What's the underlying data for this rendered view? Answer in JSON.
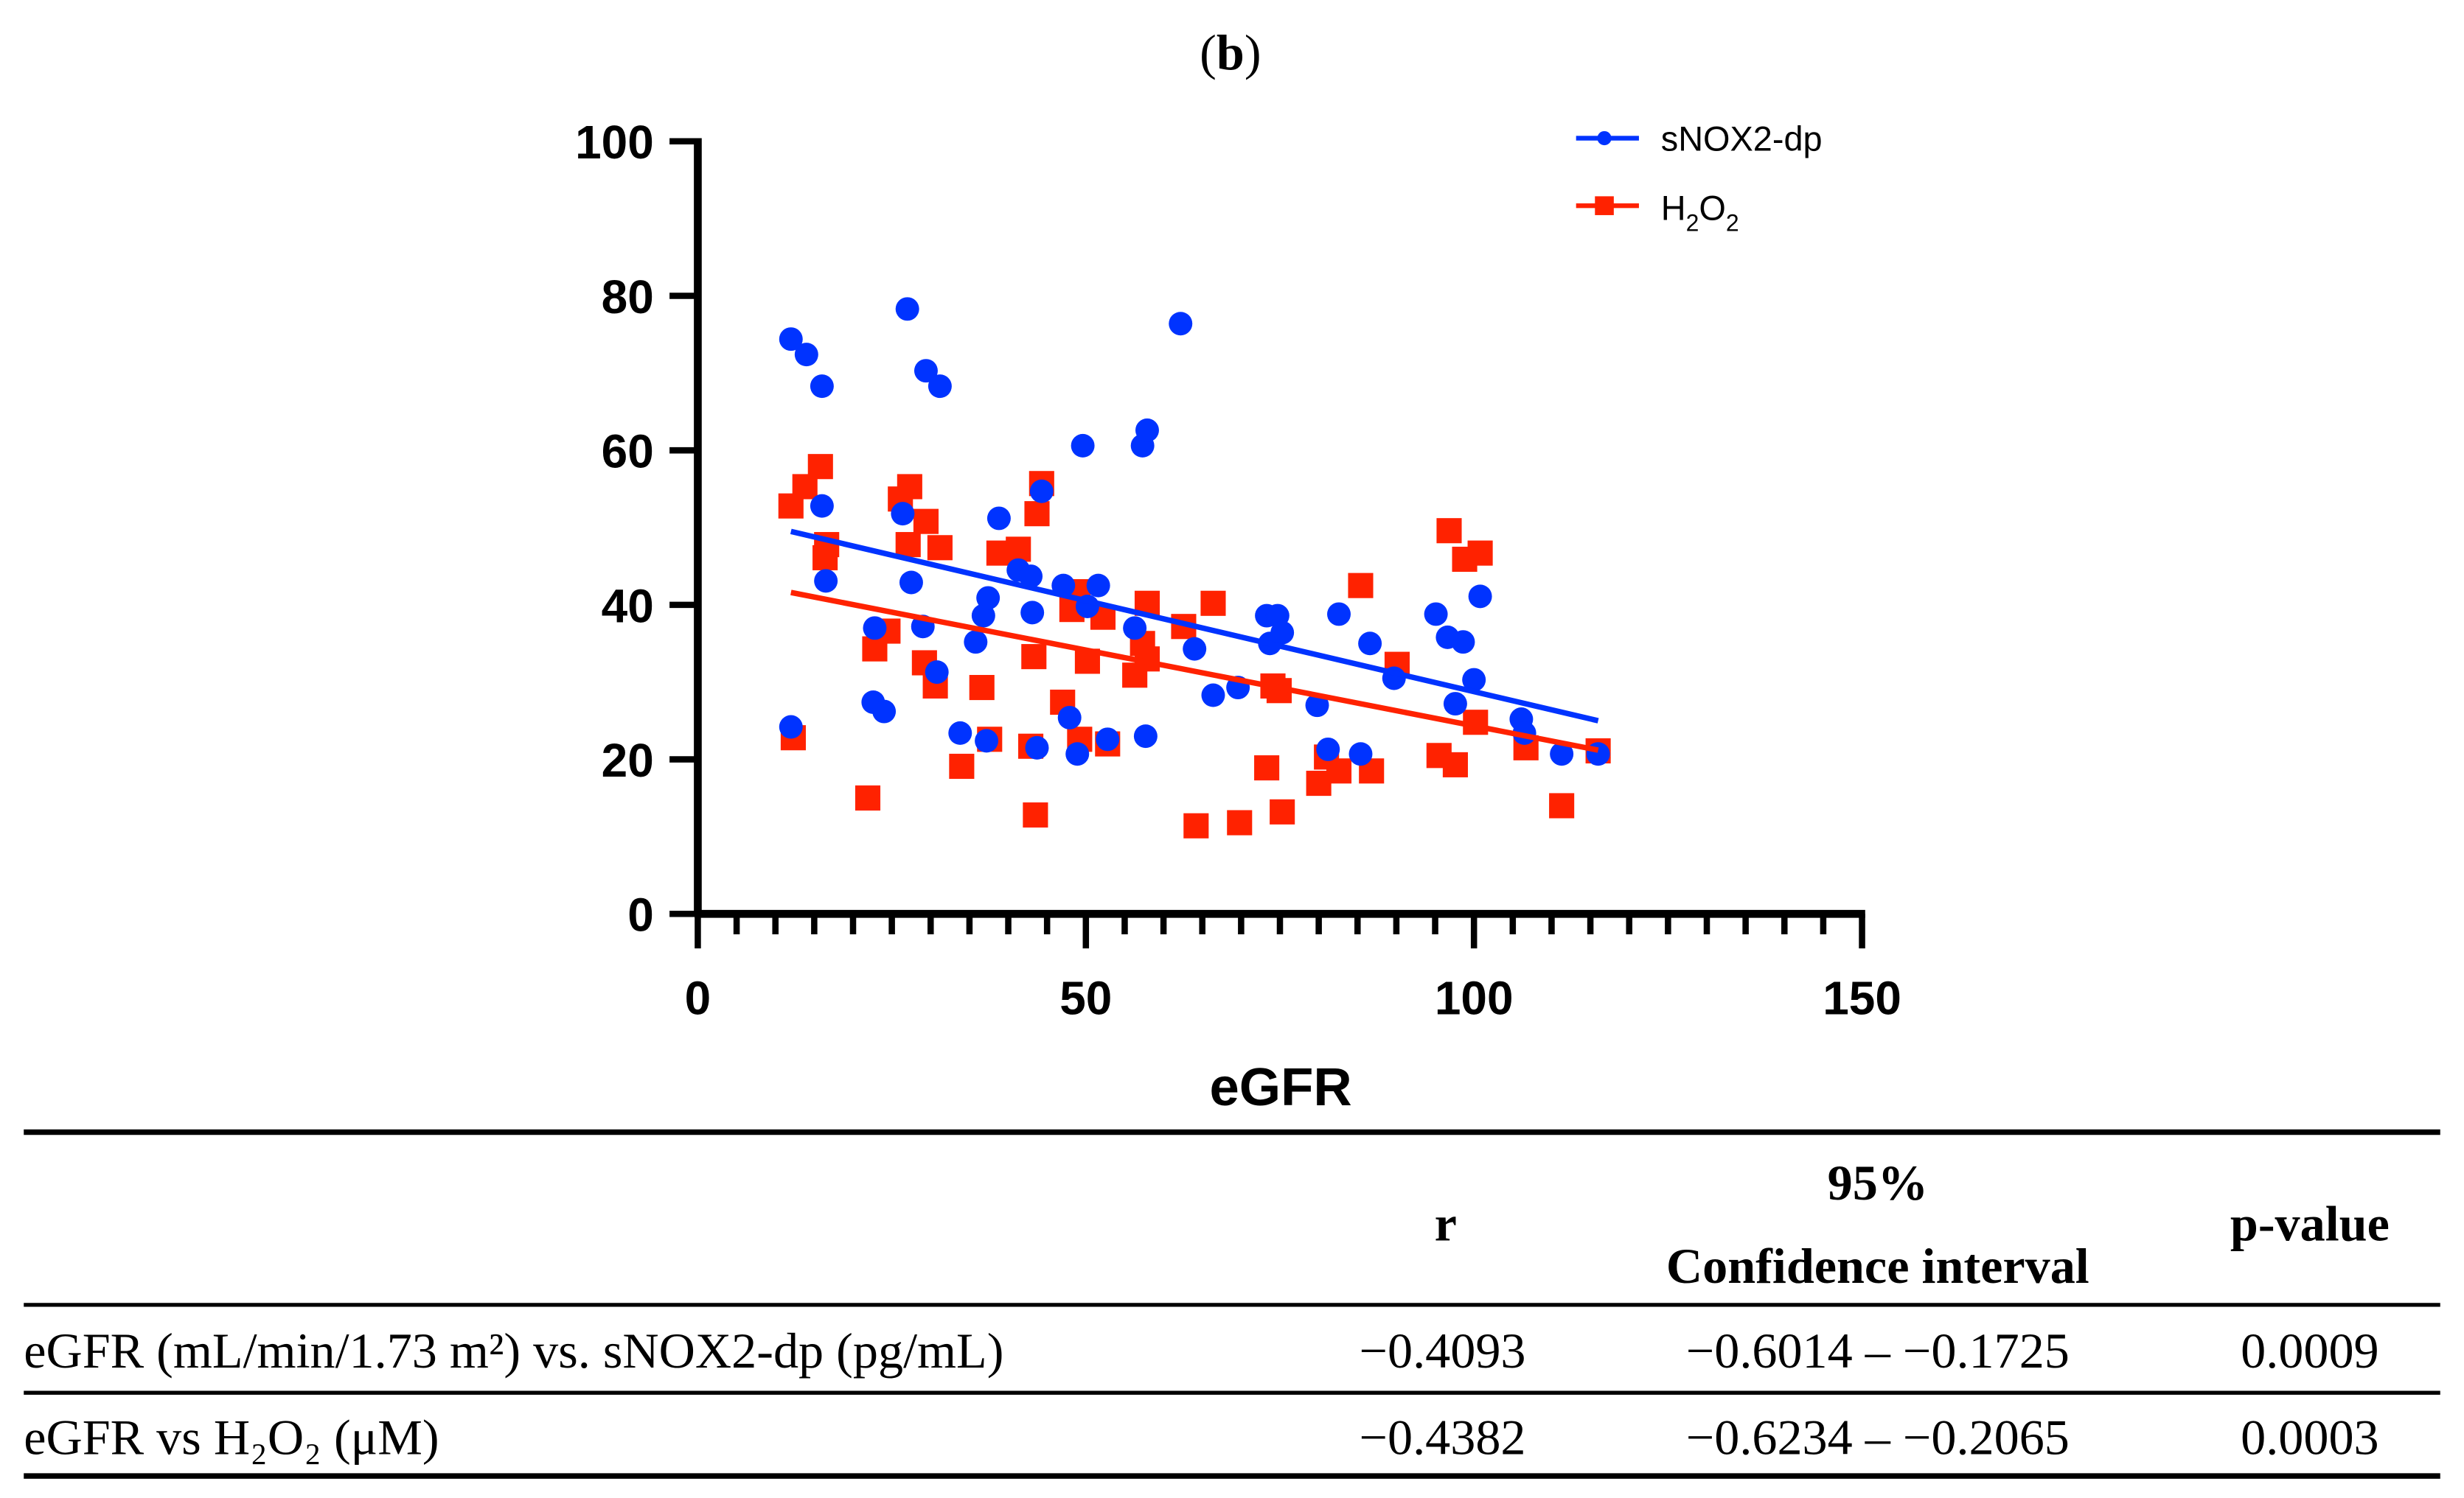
{
  "chart_data": {
    "type": "scatter",
    "panel_label": "b",
    "xlabel": "eGFR",
    "ylabel": "",
    "xlim": [
      0,
      150
    ],
    "ylim": [
      0,
      100
    ],
    "xticks": [
      "0",
      "50",
      "100",
      "150"
    ],
    "yticks": [
      "0",
      "20",
      "40",
      "60",
      "80",
      "100"
    ],
    "grid": false,
    "legend_position": "top-right",
    "series": [
      {
        "name": "sNOX2-dp",
        "color": "#0033ff",
        "marker": "circle",
        "points": [
          [
            12,
            74.4
          ],
          [
            14,
            72.4
          ],
          [
            16,
            68.3
          ],
          [
            12,
            24.2
          ],
          [
            16,
            52.8
          ],
          [
            16.5,
            43.1
          ],
          [
            22.6,
            27.4
          ],
          [
            24,
            26.2
          ],
          [
            22.8,
            37
          ],
          [
            26.4,
            51.8
          ],
          [
            27,
            78.3
          ],
          [
            27.5,
            42.9
          ],
          [
            29,
            37.2
          ],
          [
            29.4,
            70.3
          ],
          [
            31.2,
            68.3
          ],
          [
            30.8,
            31.3
          ],
          [
            33.8,
            23.4
          ],
          [
            35.8,
            35.2
          ],
          [
            36.8,
            38.6
          ],
          [
            37.4,
            40.9
          ],
          [
            37.2,
            22.4
          ],
          [
            38.8,
            51.2
          ],
          [
            41.3,
            44.5
          ],
          [
            42.9,
            43.7
          ],
          [
            43.1,
            39
          ],
          [
            43.7,
            21.5
          ],
          [
            44.3,
            54.7
          ],
          [
            47.1,
            42.5
          ],
          [
            47.9,
            25.4
          ],
          [
            48.9,
            20.7
          ],
          [
            49.6,
            60.6
          ],
          [
            50.2,
            39.8
          ],
          [
            51.6,
            42.5
          ],
          [
            52.8,
            22.6
          ],
          [
            56.3,
            37
          ],
          [
            57.3,
            60.6
          ],
          [
            57.9,
            62.6
          ],
          [
            57.7,
            23
          ],
          [
            62.2,
            76.4
          ],
          [
            64,
            34.3
          ],
          [
            66.4,
            28.3
          ],
          [
            69.6,
            29.3
          ],
          [
            73.3,
            38.6
          ],
          [
            74.7,
            38.6
          ],
          [
            73.7,
            35
          ],
          [
            75.3,
            36.4
          ],
          [
            79.8,
            27
          ],
          [
            81.2,
            21.3
          ],
          [
            82.6,
            38.8
          ],
          [
            85.4,
            20.7
          ],
          [
            86.6,
            35
          ],
          [
            89.7,
            30.5
          ],
          [
            95.1,
            38.8
          ],
          [
            96.6,
            35.8
          ],
          [
            98.6,
            35.2
          ],
          [
            97.6,
            27.2
          ],
          [
            100,
            30.3
          ],
          [
            100.8,
            41.1
          ],
          [
            106.1,
            25.2
          ],
          [
            106.5,
            23.4
          ],
          [
            111.3,
            20.7
          ],
          [
            116,
            20.7
          ]
        ],
        "fit": [
          [
            12,
            49.5
          ],
          [
            116,
            25
          ]
        ]
      },
      {
        "name": "H2O2",
        "name_parts": [
          "H",
          "2",
          "O",
          "2"
        ],
        "color": "#ff2200",
        "marker": "square",
        "points": [
          [
            12,
            52.8
          ],
          [
            13.8,
            55.3
          ],
          [
            15.8,
            57.9
          ],
          [
            12.3,
            22.8
          ],
          [
            16.6,
            47.8
          ],
          [
            16.4,
            46.1
          ],
          [
            21.9,
            15
          ],
          [
            22.8,
            34.3
          ],
          [
            24.5,
            36.6
          ],
          [
            26.1,
            53.7
          ],
          [
            27.3,
            55.3
          ],
          [
            27.1,
            47.8
          ],
          [
            29.4,
            50.8
          ],
          [
            29.2,
            32.5
          ],
          [
            30.6,
            29.5
          ],
          [
            31.2,
            47.4
          ],
          [
            34,
            19.1
          ],
          [
            36.6,
            29.3
          ],
          [
            37.6,
            22.6
          ],
          [
            38.8,
            46.7
          ],
          [
            41.3,
            47.2
          ],
          [
            43.7,
            51.8
          ],
          [
            44.3,
            55.7
          ],
          [
            43.3,
            33.3
          ],
          [
            42.9,
            21.7
          ],
          [
            43.5,
            12.8
          ],
          [
            47,
            27.4
          ],
          [
            48.2,
            39.4
          ],
          [
            49,
            41.7
          ],
          [
            49.2,
            22.6
          ],
          [
            50.2,
            32.7
          ],
          [
            52.2,
            38.4
          ],
          [
            52.8,
            22
          ],
          [
            56.3,
            30.9
          ],
          [
            57.3,
            35
          ],
          [
            57.9,
            33
          ],
          [
            57.9,
            40.2
          ],
          [
            62.6,
            37.2
          ],
          [
            64.2,
            11.4
          ],
          [
            66.4,
            40.2
          ],
          [
            69.8,
            11.8
          ],
          [
            73.3,
            18.9
          ],
          [
            74.1,
            29.5
          ],
          [
            74.9,
            28.9
          ],
          [
            75.3,
            13.2
          ],
          [
            80,
            16.9
          ],
          [
            81,
            20.3
          ],
          [
            82.6,
            18.5
          ],
          [
            85.4,
            42.5
          ],
          [
            86.8,
            18.5
          ],
          [
            90.1,
            32.3
          ],
          [
            95.5,
            20.5
          ],
          [
            96.8,
            49.6
          ],
          [
            97.6,
            19.3
          ],
          [
            98.8,
            45.9
          ],
          [
            100.8,
            46.7
          ],
          [
            100.2,
            24.8
          ],
          [
            106.7,
            21.5
          ],
          [
            111.3,
            14
          ],
          [
            116,
            21.1
          ]
        ],
        "fit": [
          [
            12,
            41.6
          ],
          [
            116,
            21.2
          ]
        ]
      }
    ]
  },
  "table": {
    "headers": {
      "r": "r",
      "ci_line1": "95%",
      "ci_line2": "Confidence interval",
      "p": "p-value"
    },
    "rows": [
      {
        "label": "eGFR (mL/min/1.73 m²) vs. sNOX2-dp (pg/mL)",
        "r": "−0.4093",
        "ci": "−0.6014 – −0.1725",
        "p": "0.0009"
      },
      {
        "label": "eGFR vs H₂O₂ (μM)",
        "r": "−0.4382",
        "ci": "−0.6234 – −0.2065",
        "p": "0.0003"
      }
    ]
  }
}
